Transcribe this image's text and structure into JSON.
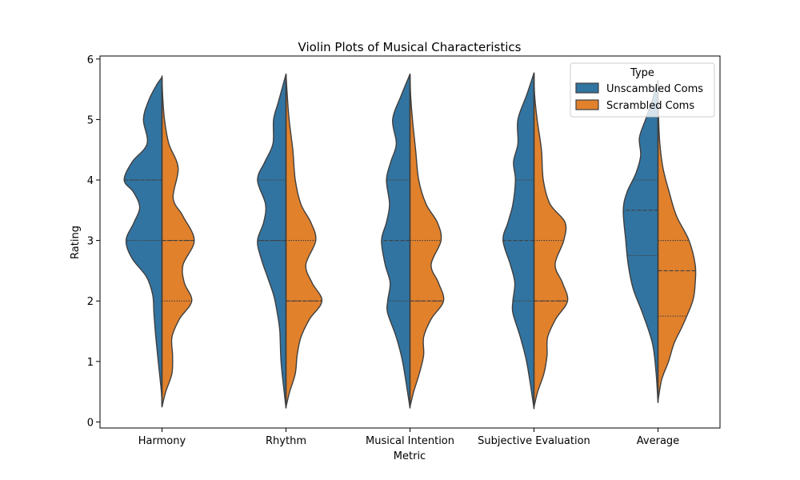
{
  "chart_data": {
    "type": "violin",
    "title": "Violin Plots of Musical Characteristics",
    "xlabel": "Metric",
    "ylabel": "Rating",
    "ylim": [
      -0.1,
      6.05
    ],
    "yticks": [
      0,
      1,
      2,
      3,
      4,
      5,
      6
    ],
    "categories": [
      "Harmony",
      "Rhythm",
      "Musical Intention",
      "Subjective Evaluation",
      "Average"
    ],
    "legend": {
      "title": "Type",
      "placement": "top-right",
      "entries": [
        "Unscambled Coms",
        "Scrambled Coms"
      ]
    },
    "colors": {
      "Unscambled Coms": "#3274a1",
      "Scrambled Coms": "#e1812c"
    },
    "violins": [
      {
        "category": "Harmony",
        "left": {
          "extent": [
            0.25,
            5.7
          ],
          "quartiles": [
            3,
            4,
            4
          ],
          "profile": [
            [
              0.25,
              0.0
            ],
            [
              0.5,
              0.01
            ],
            [
              1.0,
              0.06
            ],
            [
              1.4,
              0.1
            ],
            [
              1.8,
              0.13
            ],
            [
              2.1,
              0.15
            ],
            [
              2.4,
              0.25
            ],
            [
              2.7,
              0.48
            ],
            [
              3.0,
              0.58
            ],
            [
              3.3,
              0.45
            ],
            [
              3.55,
              0.36
            ],
            [
              3.8,
              0.46
            ],
            [
              4.0,
              0.61
            ],
            [
              4.3,
              0.48
            ],
            [
              4.6,
              0.24
            ],
            [
              5.0,
              0.3
            ],
            [
              5.3,
              0.22
            ],
            [
              5.55,
              0.1
            ],
            [
              5.7,
              0.0
            ]
          ]
        },
        "right": {
          "extent": [
            0.25,
            5.72
          ],
          "quartiles": [
            2,
            3,
            3
          ],
          "profile": [
            [
              0.25,
              0.0
            ],
            [
              0.5,
              0.06
            ],
            [
              0.8,
              0.16
            ],
            [
              1.1,
              0.17
            ],
            [
              1.4,
              0.16
            ],
            [
              1.7,
              0.28
            ],
            [
              2.0,
              0.48
            ],
            [
              2.3,
              0.36
            ],
            [
              2.6,
              0.34
            ],
            [
              3.0,
              0.52
            ],
            [
              3.4,
              0.34
            ],
            [
              3.7,
              0.18
            ],
            [
              4.2,
              0.26
            ],
            [
              4.6,
              0.11
            ],
            [
              5.0,
              0.04
            ],
            [
              5.4,
              0.01
            ],
            [
              5.72,
              0.0
            ]
          ]
        }
      },
      {
        "category": "Rhythm",
        "left": {
          "extent": [
            0.23,
            5.75
          ],
          "quartiles": [
            3,
            3,
            4
          ],
          "profile": [
            [
              0.23,
              0.0
            ],
            [
              0.5,
              0.03
            ],
            [
              1.0,
              0.08
            ],
            [
              1.5,
              0.1
            ],
            [
              1.8,
              0.14
            ],
            [
              2.1,
              0.2
            ],
            [
              2.4,
              0.3
            ],
            [
              2.7,
              0.4
            ],
            [
              3.0,
              0.46
            ],
            [
              3.3,
              0.36
            ],
            [
              3.6,
              0.33
            ],
            [
              4.0,
              0.46
            ],
            [
              4.3,
              0.34
            ],
            [
              4.6,
              0.21
            ],
            [
              5.0,
              0.2
            ],
            [
              5.3,
              0.12
            ],
            [
              5.75,
              0.0
            ]
          ]
        },
        "right": {
          "extent": [
            0.25,
            5.75
          ],
          "quartiles": [
            2,
            2,
            3
          ],
          "profile": [
            [
              0.25,
              0.0
            ],
            [
              0.5,
              0.06
            ],
            [
              0.8,
              0.15
            ],
            [
              1.1,
              0.18
            ],
            [
              1.4,
              0.24
            ],
            [
              1.7,
              0.38
            ],
            [
              2.0,
              0.58
            ],
            [
              2.3,
              0.42
            ],
            [
              2.6,
              0.32
            ],
            [
              3.0,
              0.48
            ],
            [
              3.3,
              0.4
            ],
            [
              3.6,
              0.24
            ],
            [
              4.0,
              0.15
            ],
            [
              4.5,
              0.11
            ],
            [
              5.0,
              0.05
            ],
            [
              5.4,
              0.02
            ],
            [
              5.75,
              0.0
            ]
          ]
        }
      },
      {
        "category": "Musical Intention",
        "left": {
          "extent": [
            0.23,
            5.75
          ],
          "quartiles": [
            2,
            3,
            4
          ],
          "profile": [
            [
              0.23,
              0.0
            ],
            [
              0.5,
              0.04
            ],
            [
              1.0,
              0.12
            ],
            [
              1.4,
              0.22
            ],
            [
              1.8,
              0.36
            ],
            [
              2.0,
              0.36
            ],
            [
              2.3,
              0.32
            ],
            [
              2.6,
              0.4
            ],
            [
              3.0,
              0.46
            ],
            [
              3.3,
              0.38
            ],
            [
              3.6,
              0.33
            ],
            [
              4.0,
              0.38
            ],
            [
              4.3,
              0.31
            ],
            [
              4.6,
              0.22
            ],
            [
              5.0,
              0.28
            ],
            [
              5.4,
              0.14
            ],
            [
              5.75,
              0.0
            ]
          ]
        },
        "right": {
          "extent": [
            0.25,
            5.75
          ],
          "quartiles": [
            2,
            2,
            3
          ],
          "profile": [
            [
              0.25,
              0.0
            ],
            [
              0.5,
              0.06
            ],
            [
              0.8,
              0.15
            ],
            [
              1.1,
              0.22
            ],
            [
              1.4,
              0.22
            ],
            [
              1.7,
              0.34
            ],
            [
              2.0,
              0.54
            ],
            [
              2.3,
              0.46
            ],
            [
              2.6,
              0.34
            ],
            [
              3.0,
              0.5
            ],
            [
              3.3,
              0.44
            ],
            [
              3.6,
              0.26
            ],
            [
              4.0,
              0.14
            ],
            [
              4.5,
              0.09
            ],
            [
              5.0,
              0.04
            ],
            [
              5.4,
              0.01
            ],
            [
              5.75,
              0.0
            ]
          ]
        }
      },
      {
        "category": "Subjective Evaluation",
        "left": {
          "extent": [
            0.22,
            5.77
          ],
          "quartiles": [
            2,
            3,
            4
          ],
          "profile": [
            [
              0.22,
              0.0
            ],
            [
              0.5,
              0.04
            ],
            [
              1.0,
              0.12
            ],
            [
              1.4,
              0.22
            ],
            [
              1.8,
              0.34
            ],
            [
              2.0,
              0.34
            ],
            [
              2.3,
              0.31
            ],
            [
              2.6,
              0.38
            ],
            [
              3.0,
              0.5
            ],
            [
              3.3,
              0.42
            ],
            [
              3.6,
              0.34
            ],
            [
              4.0,
              0.3
            ],
            [
              4.3,
              0.33
            ],
            [
              4.6,
              0.26
            ],
            [
              5.0,
              0.26
            ],
            [
              5.4,
              0.12
            ],
            [
              5.77,
              0.0
            ]
          ]
        },
        "right": {
          "extent": [
            0.25,
            5.77
          ],
          "quartiles": [
            2,
            2,
            3
          ],
          "profile": [
            [
              0.25,
              0.0
            ],
            [
              0.5,
              0.06
            ],
            [
              0.8,
              0.16
            ],
            [
              1.1,
              0.21
            ],
            [
              1.4,
              0.22
            ],
            [
              1.7,
              0.35
            ],
            [
              2.0,
              0.54
            ],
            [
              2.3,
              0.46
            ],
            [
              2.6,
              0.34
            ],
            [
              3.0,
              0.48
            ],
            [
              3.3,
              0.5
            ],
            [
              3.6,
              0.26
            ],
            [
              4.0,
              0.15
            ],
            [
              4.5,
              0.12
            ],
            [
              5.0,
              0.05
            ],
            [
              5.4,
              0.01
            ],
            [
              5.77,
              0.0
            ]
          ]
        }
      },
      {
        "category": "Average",
        "left": {
          "extent": [
            0.32,
            5.65
          ],
          "quartiles": [
            2.75,
            3.5,
            4
          ],
          "profile": [
            [
              0.32,
              0.0
            ],
            [
              0.8,
              0.03
            ],
            [
              1.3,
              0.09
            ],
            [
              1.8,
              0.25
            ],
            [
              2.2,
              0.4
            ],
            [
              2.6,
              0.48
            ],
            [
              3.0,
              0.52
            ],
            [
              3.5,
              0.56
            ],
            [
              3.8,
              0.5
            ],
            [
              4.1,
              0.36
            ],
            [
              4.4,
              0.28
            ],
            [
              4.7,
              0.3
            ],
            [
              5.0,
              0.2
            ],
            [
              5.3,
              0.1
            ],
            [
              5.65,
              0.0
            ]
          ]
        },
        "right": {
          "extent": [
            0.35,
            5.65
          ],
          "quartiles": [
            1.75,
            2.5,
            3
          ],
          "profile": [
            [
              0.35,
              0.0
            ],
            [
              0.7,
              0.06
            ],
            [
              1.0,
              0.17
            ],
            [
              1.3,
              0.26
            ],
            [
              1.6,
              0.4
            ],
            [
              2.0,
              0.56
            ],
            [
              2.3,
              0.6
            ],
            [
              2.6,
              0.6
            ],
            [
              3.0,
              0.5
            ],
            [
              3.4,
              0.3
            ],
            [
              3.8,
              0.18
            ],
            [
              4.2,
              0.08
            ],
            [
              4.6,
              0.03
            ],
            [
              5.0,
              0.01
            ],
            [
              5.65,
              0.0
            ]
          ]
        }
      }
    ]
  }
}
